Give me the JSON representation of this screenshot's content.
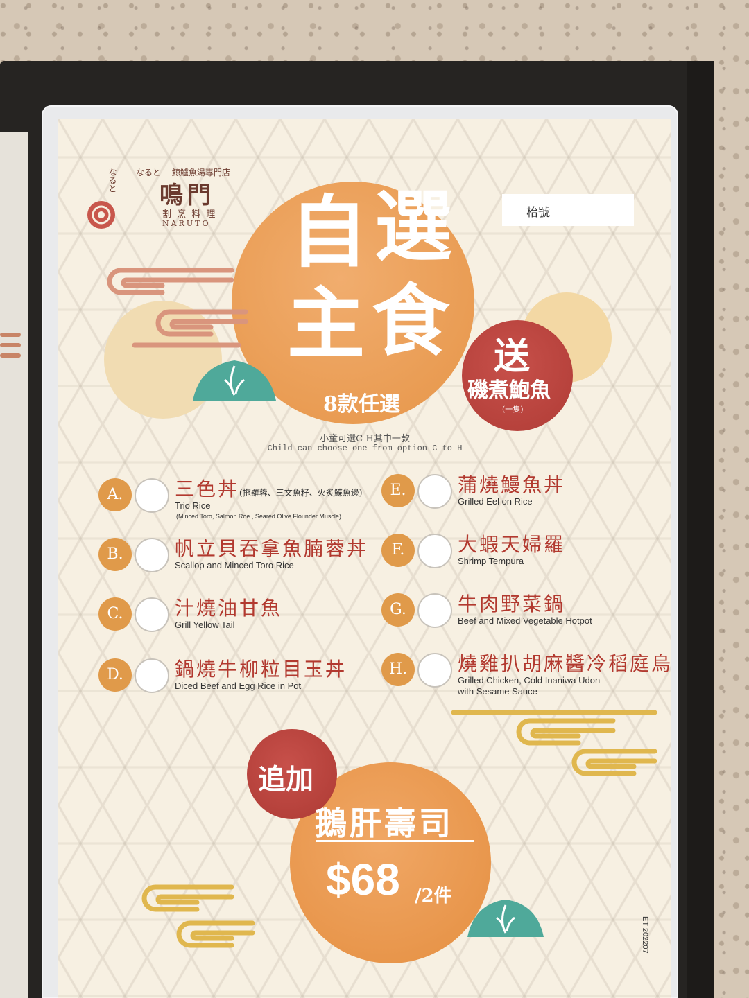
{
  "logo": {
    "kana": "なると",
    "tagline": "なると— 鯨鱸魚湯專門店",
    "name": "鳴門",
    "subtitle": "割 烹 料 理",
    "roman": "NARUTO"
  },
  "table_label": "枱號",
  "headline": {
    "chars": [
      "自",
      "選",
      "主",
      "食"
    ],
    "count_text": "8款任選"
  },
  "gift": {
    "label": "送",
    "item": "磯煮鮑魚",
    "qty": "(一隻)"
  },
  "child_note": {
    "zh": "小童可選C-H其中一款",
    "en": "Child can choose one from option C to H"
  },
  "items": [
    {
      "letter": "A.",
      "zh": "三色丼",
      "zh_note": "(拖羅蓉、三文魚籽、火炙鰈魚邊)",
      "en": "Trio Rice",
      "en_note": "(Minced Toro, Salmon Roe , Seared Olive Flounder Muscle)"
    },
    {
      "letter": "B.",
      "zh": "帆立貝吞拿魚腩蓉丼",
      "en": "Scallop and Minced Toro Rice"
    },
    {
      "letter": "C.",
      "zh": "汁燒油甘魚",
      "en": "Grill Yellow Tail"
    },
    {
      "letter": "D.",
      "zh": "鍋燒牛柳粒目玉丼",
      "en": "Diced Beef and Egg Rice in Pot"
    },
    {
      "letter": "E.",
      "zh": "蒲燒鰻魚丼",
      "en": "Grilled Eel on Rice"
    },
    {
      "letter": "F.",
      "zh": "大蝦天婦羅",
      "en": "Shrimp Tempura"
    },
    {
      "letter": "G.",
      "zh": "牛肉野菜鍋",
      "en": "Beef and Mixed Vegetable Hotpot"
    },
    {
      "letter": "H.",
      "zh": "燒雞扒胡麻醬冷稻庭烏冬",
      "en": "Grilled Chicken, Cold Inaniwa Udon",
      "en_note": "with Sesame Sauce"
    }
  ],
  "promo": {
    "label": "追加",
    "item": "鵝肝壽司",
    "price": "$68",
    "unit": "/2件"
  },
  "edition": "ET 202207",
  "colors": {
    "orange": "#e69548",
    "red": "#b03c36",
    "teal": "#4fa99a",
    "gold": "#e0b74e"
  }
}
